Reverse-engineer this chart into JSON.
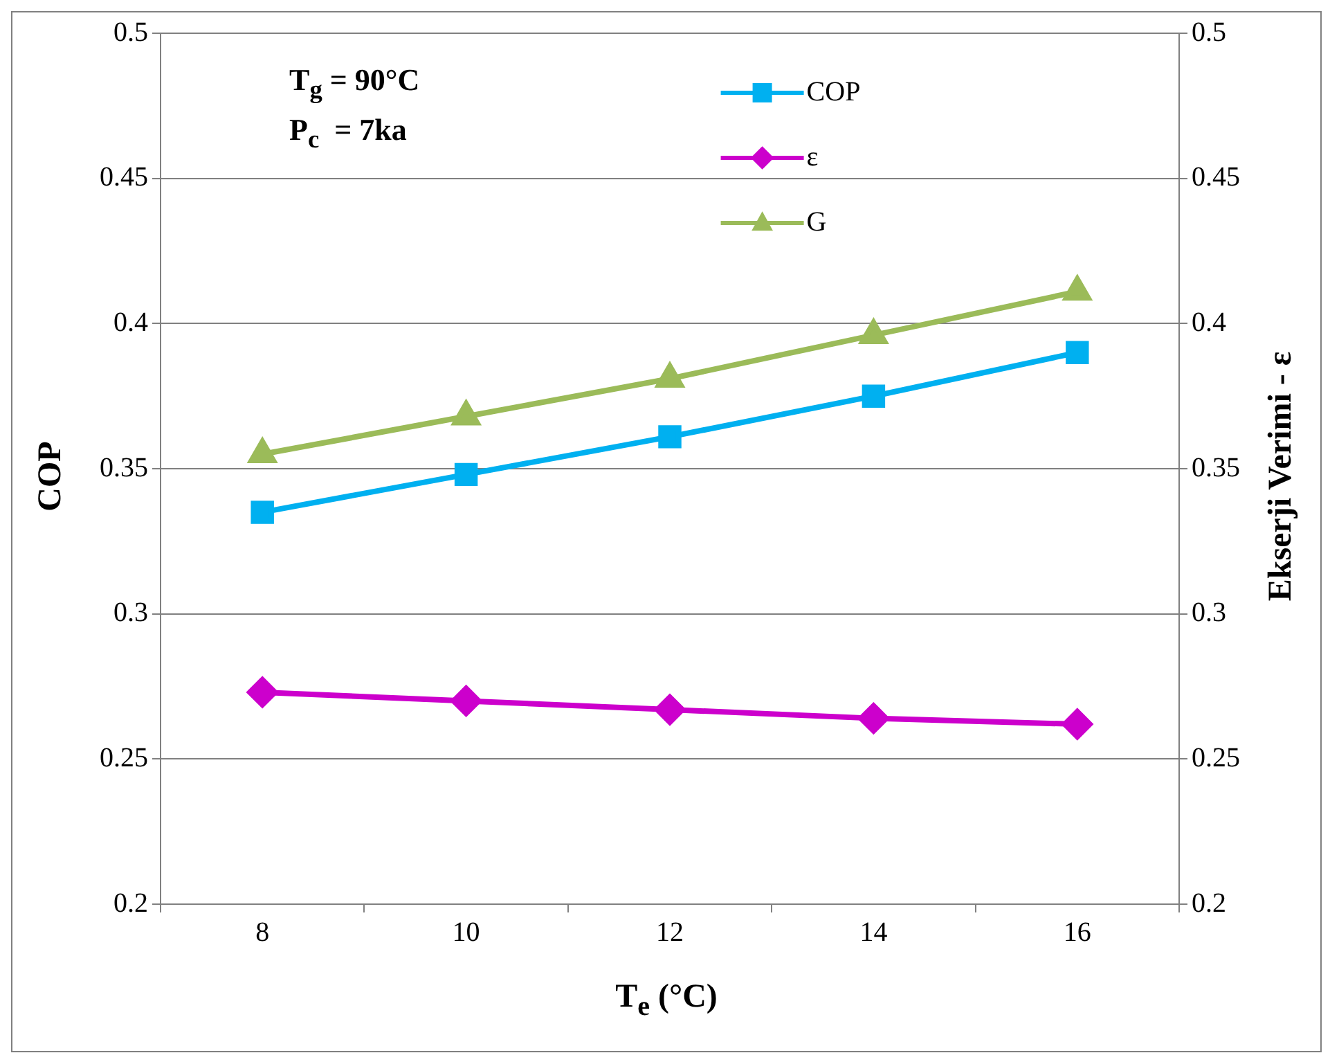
{
  "chart_data": {
    "type": "line",
    "xlabel": "T$_{e}$ (°C)",
    "ylabel": "COP",
    "y2label": "Ekserji Verimi - ε",
    "categories": [
      "8",
      "10",
      "12",
      "14",
      "16"
    ],
    "series": [
      {
        "name": "COP",
        "color": "#00b0f0",
        "marker": "square",
        "values": [
          0.335,
          0.348,
          0.361,
          0.375,
          0.39
        ]
      },
      {
        "name": "ε",
        "color": "#cc00cc",
        "marker": "diamond",
        "values": [
          0.273,
          0.27,
          0.267,
          0.264,
          0.262
        ]
      },
      {
        "name": "G",
        "color": "#9bbb59",
        "marker": "triangle",
        "values": [
          0.355,
          0.368,
          0.381,
          0.396,
          0.411
        ]
      }
    ],
    "ylim": [
      0.2,
      0.5
    ],
    "yticks": [
      0.2,
      0.25,
      0.3,
      0.35,
      0.4,
      0.45,
      0.5
    ],
    "y2lim": [
      0.2,
      0.5
    ],
    "y2ticks": [
      0.2,
      0.25,
      0.3,
      0.35,
      0.4,
      0.45,
      0.5
    ],
    "grid": "y",
    "legend": "top",
    "annotations": [
      "T$_{g}$ = 90°C",
      "P$_{c}$  = 7ka"
    ]
  }
}
